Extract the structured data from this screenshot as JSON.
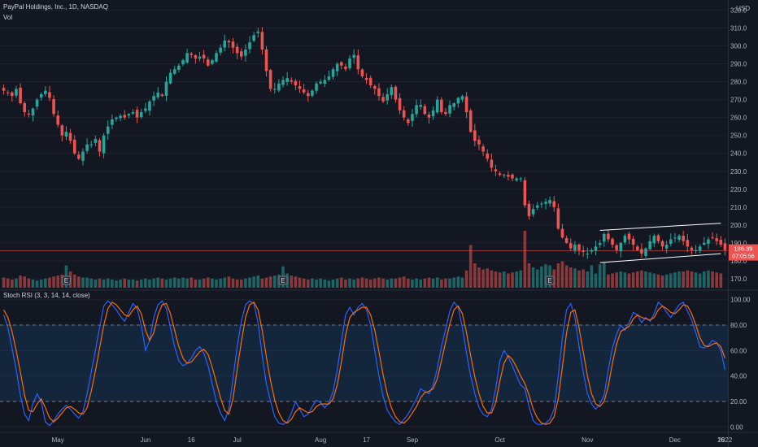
{
  "header": {
    "title": "PayPal Holdings, Inc., 1D, NASDAQ",
    "volume_label": "Vol",
    "currency": "USD"
  },
  "chart_data": [
    {
      "type": "candlestick",
      "title": "PayPal Holdings, Inc., 1D, NASDAQ",
      "x_labels": [
        "May",
        "Jun",
        "16",
        "Jul",
        "Aug",
        "17",
        "Sep",
        "Oct",
        "Nov",
        "Dec",
        "16",
        "2022"
      ],
      "y_ticks": [
        170,
        180,
        190,
        200,
        210,
        220,
        230,
        240,
        250,
        260,
        270,
        280,
        290,
        300,
        310,
        320
      ],
      "ylim": [
        165,
        322
      ],
      "price_label": "186.39",
      "countdown_label": "07:05:56",
      "guide_price": 185.6,
      "channel_lines": [
        {
          "from_bar": 143,
          "from": 197,
          "to_bar": 172,
          "to": 201
        },
        {
          "from_bar": 143,
          "from": 179,
          "to_bar": 172,
          "to": 184
        }
      ],
      "event_marker": "E",
      "event_bars": [
        15,
        67,
        131
      ],
      "close_series": [
        275,
        274,
        272,
        276,
        268,
        263,
        262,
        265,
        270,
        273,
        275,
        271,
        262,
        256,
        250,
        252,
        247,
        240,
        237,
        241,
        245,
        245,
        248,
        241,
        250,
        255,
        259,
        260,
        261,
        260,
        262,
        263,
        260,
        263,
        265,
        269,
        272,
        274,
        272,
        280,
        285,
        287,
        289,
        292,
        296,
        295,
        293,
        294,
        293,
        289,
        292,
        296,
        299,
        303,
        302,
        299,
        296,
        294,
        298,
        302,
        306,
        308,
        298,
        286,
        276,
        276,
        279,
        281,
        282,
        280,
        278,
        276,
        274,
        272,
        275,
        279,
        280,
        281,
        283,
        287,
        290,
        289,
        287,
        293,
        295,
        287,
        283,
        281,
        278,
        276,
        272,
        269,
        273,
        277,
        270,
        264,
        260,
        257,
        262,
        267,
        267,
        262,
        260,
        264,
        270,
        263,
        262,
        267,
        268,
        271,
        272,
        263,
        252,
        247,
        245,
        241,
        237,
        232,
        230,
        228,
        228,
        227,
        226,
        226,
        226,
        211,
        205,
        209,
        211,
        212,
        213,
        214,
        210,
        198,
        193,
        190,
        187,
        189,
        186,
        185,
        184,
        186,
        188,
        190,
        195,
        192,
        189,
        186,
        190,
        194,
        192,
        189,
        186,
        184,
        187,
        191,
        194,
        191,
        188,
        189,
        192,
        193,
        194,
        191,
        188,
        186,
        186,
        188,
        190,
        192,
        193,
        191,
        189,
        186
      ],
      "volume_series": [
        10,
        9,
        8,
        9,
        12,
        11,
        9,
        8,
        7,
        8,
        9,
        10,
        11,
        12,
        13,
        22,
        16,
        13,
        11,
        10,
        10,
        9,
        8,
        9,
        8,
        9,
        8,
        7,
        8,
        9,
        8,
        8,
        7,
        8,
        9,
        8,
        9,
        10,
        9,
        8,
        9,
        10,
        9,
        10,
        9,
        10,
        8,
        8,
        9,
        10,
        9,
        8,
        9,
        10,
        11,
        9,
        8,
        8,
        9,
        10,
        11,
        12,
        9,
        10,
        11,
        12,
        13,
        21,
        14,
        12,
        11,
        10,
        9,
        8,
        9,
        8,
        9,
        8,
        7,
        8,
        9,
        10,
        8,
        9,
        8,
        9,
        10,
        9,
        8,
        9,
        10,
        9,
        8,
        9,
        9,
        10,
        11,
        9,
        8,
        9,
        8,
        9,
        10,
        9,
        10,
        8,
        9,
        9,
        10,
        11,
        10,
        17,
        42,
        24,
        20,
        18,
        19,
        17,
        16,
        15,
        16,
        14,
        15,
        16,
        17,
        56,
        24,
        20,
        18,
        21,
        23,
        22,
        18,
        24,
        26,
        22,
        20,
        19,
        17,
        18,
        16,
        22,
        14,
        23,
        25,
        13,
        14,
        15,
        16,
        15,
        14,
        15,
        16,
        17,
        16,
        15,
        14,
        13,
        12,
        13,
        14,
        15,
        16,
        16,
        17,
        16,
        15,
        14,
        16,
        17,
        16,
        15,
        14
      ]
    },
    {
      "type": "line",
      "title": "Stoch RSI (3, 3, 14, 14, close)",
      "y_ticks": [
        0,
        20,
        40,
        60,
        80,
        100
      ],
      "tick_labels": [
        "0.00",
        "20.00",
        "40.00",
        "60.00",
        "80.00",
        "100.00"
      ],
      "ylim": [
        -3,
        103
      ],
      "bands": [
        20,
        80
      ],
      "series": [
        {
          "color": "#2962ff",
          "values": [
            88,
            78,
            62,
            45,
            25,
            10,
            5,
            18,
            26,
            20,
            4,
            1,
            5,
            10,
            14,
            17,
            14,
            10,
            7,
            12,
            26,
            43,
            60,
            78,
            95,
            99,
            96,
            92,
            87,
            83,
            90,
            97,
            93,
            80,
            60,
            68,
            86,
            96,
            99,
            93,
            78,
            63,
            52,
            48,
            50,
            54,
            60,
            63,
            58,
            48,
            34,
            20,
            11,
            5,
            14,
            38,
            63,
            83,
            96,
            99,
            97,
            82,
            56,
            34,
            20,
            8,
            3,
            2,
            4,
            11,
            20,
            14,
            8,
            10,
            16,
            21,
            19,
            15,
            19,
            28,
            45,
            67,
            88,
            94,
            88,
            94,
            97,
            92,
            80,
            60,
            40,
            24,
            13,
            8,
            4,
            2,
            6,
            10,
            16,
            22,
            30,
            28,
            26,
            33,
            46,
            63,
            77,
            91,
            98,
            94,
            78,
            58,
            40,
            26,
            15,
            10,
            8,
            14,
            30,
            52,
            60,
            55,
            48,
            40,
            33,
            30,
            16,
            5,
            2,
            2,
            3,
            6,
            14,
            40,
            70,
            92,
            97,
            86,
            63,
            43,
            26,
            18,
            14,
            18,
            25,
            45,
            62,
            73,
            80,
            76,
            82,
            90,
            88,
            82,
            86,
            83,
            89,
            98,
            95,
            90,
            86,
            91,
            96,
            98,
            91,
            84,
            74,
            63,
            62,
            64,
            68,
            66,
            60,
            45
          ]
        },
        {
          "color": "#ff6d00",
          "values": [
            92,
            86,
            75,
            60,
            43,
            25,
            13,
            12,
            18,
            22,
            15,
            7,
            4,
            7,
            11,
            15,
            16,
            14,
            11,
            10,
            15,
            28,
            44,
            62,
            80,
            93,
            98,
            96,
            92,
            88,
            87,
            92,
            95,
            89,
            76,
            68,
            74,
            88,
            96,
            97,
            89,
            76,
            63,
            54,
            50,
            51,
            55,
            59,
            61,
            57,
            47,
            35,
            23,
            13,
            10,
            22,
            45,
            67,
            86,
            96,
            98,
            92,
            76,
            55,
            36,
            21,
            11,
            5,
            3,
            6,
            12,
            15,
            13,
            11,
            12,
            16,
            18,
            18,
            18,
            22,
            33,
            51,
            72,
            86,
            90,
            92,
            94,
            94,
            88,
            76,
            59,
            41,
            26,
            15,
            8,
            4,
            3,
            6,
            11,
            16,
            23,
            27,
            28,
            30,
            38,
            52,
            67,
            81,
            92,
            95,
            89,
            74,
            56,
            39,
            26,
            16,
            11,
            11,
            19,
            36,
            50,
            56,
            53,
            47,
            40,
            34,
            25,
            14,
            7,
            3,
            2,
            3,
            8,
            22,
            47,
            74,
            90,
            92,
            78,
            59,
            40,
            26,
            18,
            16,
            20,
            32,
            50,
            65,
            75,
            77,
            79,
            85,
            88,
            86,
            85,
            84,
            86,
            92,
            95,
            93,
            90,
            89,
            92,
            96,
            95,
            89,
            80,
            70,
            64,
            63,
            65,
            66,
            63,
            54
          ]
        }
      ]
    }
  ]
}
